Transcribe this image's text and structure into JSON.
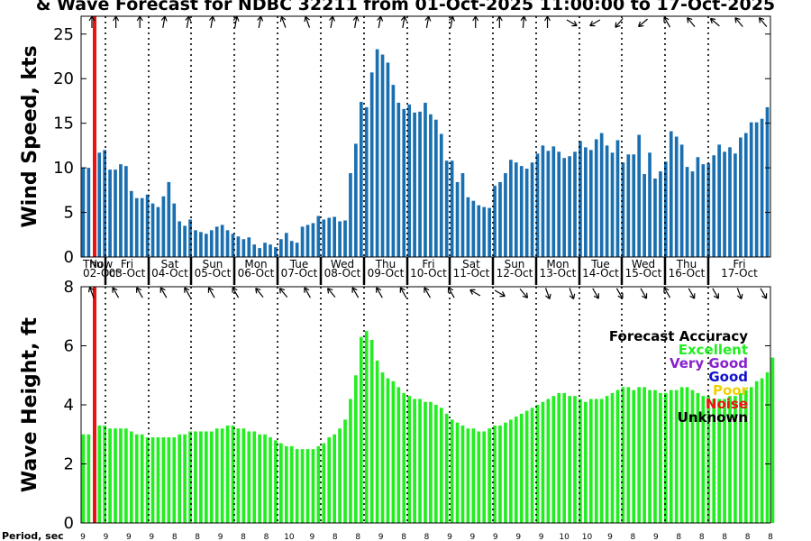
{
  "title": "& Wave Forecast for NDBC 32211 from 01-Oct-2025 11:00:00 to 17-Oct-2025",
  "colors": {
    "wind_bar": "#1a6fb0",
    "wave_bar": "#22ee22",
    "now_line": "#ee1111",
    "grid": "#000000"
  },
  "chart_data": [
    {
      "type": "bar",
      "name": "wind",
      "ylabel": "Wind Speed, kts",
      "ylim": [
        0,
        27
      ],
      "yticks": [
        0,
        5,
        10,
        15,
        20,
        25
      ],
      "now_label": "Now",
      "days": [
        {
          "dow": "Thu",
          "date": "02-Oct"
        },
        {
          "dow": "Fri",
          "date": "03-Oct"
        },
        {
          "dow": "Sat",
          "date": "04-Oct"
        },
        {
          "dow": "Sun",
          "date": "05-Oct"
        },
        {
          "dow": "Mon",
          "date": "06-Oct"
        },
        {
          "dow": "Tue",
          "date": "07-Oct"
        },
        {
          "dow": "Wed",
          "date": "08-Oct"
        },
        {
          "dow": "Thu",
          "date": "09-Oct"
        },
        {
          "dow": "Fri",
          "date": "10-Oct"
        },
        {
          "dow": "Sat",
          "date": "11-Oct"
        },
        {
          "dow": "Sun",
          "date": "12-Oct"
        },
        {
          "dow": "Mon",
          "date": "13-Oct"
        },
        {
          "dow": "Tue",
          "date": "14-Oct"
        },
        {
          "dow": "Wed",
          "date": "15-Oct"
        },
        {
          "dow": "Thu",
          "date": "16-Oct"
        },
        {
          "dow": "Fri",
          "date": "17-Oct"
        }
      ],
      "values": [
        10,
        10,
        null,
        11.7,
        12,
        9.8,
        9.8,
        10.4,
        10.2,
        7.4,
        6.6,
        6.6,
        7,
        6,
        5.6,
        6.8,
        8.4,
        6,
        4,
        3.5,
        4.2,
        3,
        2.8,
        2.6,
        3,
        3.4,
        3.6,
        3,
        2.6,
        2.3,
        2,
        2.2,
        1.4,
        1,
        1.6,
        1.4,
        1.1,
        2,
        2.7,
        1.8,
        1.6,
        3.4,
        3.6,
        3.8,
        4.6,
        4.2,
        4.4,
        4.5,
        4,
        4.1,
        9.4,
        12.7,
        17.4,
        16.8,
        20.7,
        23.3,
        22.7,
        21.8,
        19.3,
        17.3,
        16.6,
        17.1,
        16.2,
        16.3,
        17.3,
        16,
        15.4,
        13.8,
        10.8,
        10.8,
        8.4,
        9.4,
        6.7,
        6.3,
        5.8,
        5.6,
        5.5,
        8.0,
        8.4,
        9.4,
        10.9,
        10.6,
        10.2,
        9.9,
        10.6,
        11.6,
        12.5,
        11.9,
        12.4,
        11.8,
        11.1,
        11.3,
        11.8,
        13,
        12.3,
        12,
        13.2,
        13.9,
        12.5,
        11.7,
        13.1,
        10.6,
        11.5,
        11.5,
        13.7,
        9.3,
        11.7,
        8.8,
        9.6,
        10.7,
        14.1,
        13.5,
        12.6,
        10.1,
        9.6,
        11.2,
        10.4,
        10.5,
        11.4,
        12.6,
        11.8,
        12.3,
        11.6,
        13.4,
        13.9,
        15.1,
        15.1,
        15.5,
        16.8
      ],
      "arrows_deg": [
        0,
        0,
        0,
        10,
        10,
        10,
        10,
        10,
        340,
        340,
        10,
        10,
        10,
        10,
        10,
        10,
        0,
        0,
        5,
        0,
        120,
        240,
        220,
        230,
        330,
        320,
        310,
        320,
        320
      ]
    },
    {
      "type": "bar",
      "name": "wave",
      "ylabel": "Wave Height, ft",
      "ylim": [
        0,
        8
      ],
      "yticks": [
        0,
        2,
        4,
        6,
        8
      ],
      "values": [
        3.0,
        3.0,
        null,
        3.3,
        3.3,
        3.2,
        3.2,
        3.2,
        3.2,
        3.1,
        3.0,
        3.0,
        2.9,
        2.9,
        2.9,
        2.9,
        2.9,
        2.9,
        3.0,
        3.0,
        3.1,
        3.1,
        3.1,
        3.1,
        3.1,
        3.2,
        3.2,
        3.3,
        3.3,
        3.2,
        3.2,
        3.1,
        3.1,
        3.0,
        3.0,
        2.9,
        2.8,
        2.7,
        2.6,
        2.6,
        2.5,
        2.5,
        2.5,
        2.5,
        2.6,
        2.7,
        2.9,
        3.0,
        3.2,
        3.5,
        4.2,
        5.0,
        6.3,
        6.5,
        6.2,
        5.5,
        5.1,
        4.9,
        4.8,
        4.6,
        4.4,
        4.3,
        4.2,
        4.2,
        4.1,
        4.1,
        4.0,
        3.9,
        3.7,
        3.5,
        3.4,
        3.3,
        3.2,
        3.2,
        3.1,
        3.1,
        3.2,
        3.3,
        3.3,
        3.4,
        3.5,
        3.6,
        3.7,
        3.8,
        3.9,
        4.0,
        4.1,
        4.2,
        4.3,
        4.4,
        4.4,
        4.3,
        4.3,
        4.2,
        4.1,
        4.2,
        4.2,
        4.2,
        4.3,
        4.4,
        4.5,
        4.6,
        4.6,
        4.5,
        4.6,
        4.6,
        4.5,
        4.5,
        4.4,
        4.4,
        4.5,
        4.5,
        4.6,
        4.6,
        4.5,
        4.4,
        4.3,
        4.3,
        4.2,
        4.2,
        4.2,
        4.3,
        4.3,
        4.4,
        4.5,
        4.6,
        4.8,
        4.9,
        5.1,
        5.6
      ],
      "arrows_deg": [
        340,
        330,
        330,
        330,
        330,
        330,
        330,
        320,
        320,
        330,
        320,
        330,
        330,
        330,
        330,
        330,
        300,
        120,
        140,
        160,
        160,
        150,
        150,
        150,
        330,
        150,
        150,
        160,
        150
      ]
    }
  ],
  "legend": {
    "title": "Forecast Accuracy",
    "items": [
      {
        "label": "Excellent",
        "color": "#22ee22"
      },
      {
        "label": "Very Good",
        "color": "#8822cc"
      },
      {
        "label": "Good",
        "color": "#1111cc"
      },
      {
        "label": "Poor",
        "color": "#f0d000"
      },
      {
        "label": "Noise",
        "color": "#ee1111"
      },
      {
        "label": "Unknown",
        "color": "#000000"
      }
    ]
  },
  "period": {
    "label": "Period, sec",
    "values": [
      "9",
      "9",
      "9",
      "9",
      "8",
      "8",
      "9",
      "8",
      "8",
      "10",
      "9",
      "8",
      "8",
      "9",
      "8",
      "8",
      "9",
      "9",
      "9",
      "9",
      "9",
      "10",
      "10",
      "9",
      "8",
      "9",
      "8",
      "8",
      "8",
      "8",
      "8"
    ]
  }
}
